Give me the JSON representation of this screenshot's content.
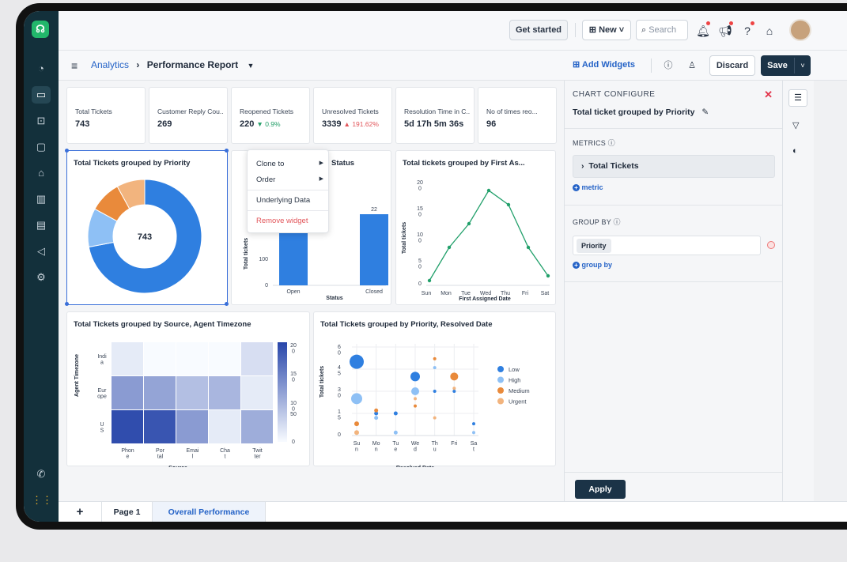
{
  "app": {
    "logo_glyph": "☊"
  },
  "topbar": {
    "get_started": "Get started",
    "new_label": "New",
    "search_placeholder": "Search"
  },
  "breadcrumb": {
    "root": "Analytics",
    "sep": "›",
    "current": "Performance Report"
  },
  "actions": {
    "add_widgets": "Add Widgets",
    "discard": "Discard",
    "save": "Save"
  },
  "kpis": [
    {
      "label": "Total Tickets",
      "value": "743",
      "delta": ""
    },
    {
      "label": "Customer Reply Cou..",
      "value": "269",
      "delta": ""
    },
    {
      "label": "Reopened Tickets",
      "value": "220",
      "delta": "▼ 0.9%",
      "delta_color": "#26a06a"
    },
    {
      "label": "Unresolved Tickets",
      "value": "3339",
      "delta": "▲ 191.62%",
      "delta_color": "#e2565b"
    },
    {
      "label": "Resolution Time in C..",
      "value": "5d 17h 5m 36s",
      "delta": ""
    },
    {
      "label": "No of times reo...",
      "value": "96",
      "delta": ""
    }
  ],
  "widgets": {
    "donut_title": "Total Tickets grouped by Priority",
    "donut_center": "743",
    "status_title": "Status",
    "firstassign_title": "Total tickets grouped by First As...",
    "heatmap_title": "Total Tickets grouped by Source, Agent Timezone",
    "bubble_title": "Total Tickets grouped by Priority, Resolved Date"
  },
  "context_menu": {
    "clone": "Clone to",
    "order": "Order",
    "underlying": "Underlying Data",
    "remove": "Remove widget"
  },
  "chart_data": [
    {
      "type": "pie",
      "title": "Total Tickets grouped by Priority",
      "center_label": "743",
      "slices": [
        {
          "value": 0.72,
          "color": "#2f7fe0"
        },
        {
          "value": 0.11,
          "color": "#8ec0f5"
        },
        {
          "value": 0.09,
          "color": "#e98a3b"
        },
        {
          "value": 0.08,
          "color": "#f2b47e"
        }
      ]
    },
    {
      "type": "bar",
      "title": "Status",
      "categories": [
        "Open",
        "Closed"
      ],
      "values": [
        22,
        22
      ],
      "data_labels": [
        "",
        "22"
      ],
      "ylabel": "Total tickets",
      "xlabel": "Status",
      "yticks": [
        "100",
        "0"
      ]
    },
    {
      "type": "line",
      "title": "Total tickets grouped by First As...",
      "categories": [
        "Sun",
        "Mon",
        "Tue",
        "Wed",
        "Thu",
        "Fri",
        "Sat"
      ],
      "values": [
        1,
        8,
        13,
        20,
        17,
        8,
        2
      ],
      "ylabel": "Total tickets",
      "xlabel": "First Assigned Date",
      "yticks": [
        "20\n0",
        "15\n0",
        "10\n0",
        "5\n0",
        "0"
      ],
      "ylim": [
        0,
        22
      ]
    },
    {
      "type": "heatmap",
      "title": "Total Tickets grouped by Source, Agent Timezone",
      "x": [
        "Phon\ne",
        "Por\ntal",
        "Emai\nl",
        "Cha\nt",
        "Twit\nter"
      ],
      "y": [
        "Indi\na",
        "Eur\nope",
        "U\nS"
      ],
      "values": [
        [
          1,
          0,
          0,
          0,
          2
        ],
        [
          9,
          8,
          5,
          6,
          1
        ],
        [
          19,
          18,
          9,
          1,
          7
        ]
      ],
      "xlabel": "Source",
      "ylabel": "Agent Timezone",
      "scale_ticks": [
        "20\n0",
        "15\n0",
        "10\n0",
        "50",
        "0"
      ]
    },
    {
      "type": "scatter",
      "title": "Total Tickets grouped by Priority, Resolved Date",
      "x": [
        "Su\nn",
        "Mo\nn",
        "Tu\ne",
        "We\nd",
        "Th\nu",
        "Fri",
        "Sa\nt"
      ],
      "ylabel": "Total tickets",
      "xlabel": "Resolved Date",
      "yticks": [
        "6\n0",
        "4\n5",
        "3\n0",
        "1\n5",
        "0"
      ],
      "series": [
        {
          "name": "Low",
          "color": "#2f7fe0",
          "points": [
            [
              0,
              50,
              9
            ],
            [
              1,
              15,
              2.5
            ],
            [
              2,
              15,
              2.5
            ],
            [
              3,
              40,
              6
            ],
            [
              4,
              30,
              2
            ],
            [
              5,
              30,
              2
            ],
            [
              6,
              8,
              2
            ]
          ]
        },
        {
          "name": "High",
          "color": "#8ec0f5",
          "points": [
            [
              0,
              25,
              7
            ],
            [
              1,
              12,
              2.5
            ],
            [
              2,
              2,
              2.5
            ],
            [
              3,
              30,
              5
            ],
            [
              4,
              46,
              2
            ],
            [
              6,
              2,
              2
            ]
          ]
        },
        {
          "name": "Medium",
          "color": "#e98a3b",
          "points": [
            [
              0,
              8,
              3
            ],
            [
              1,
              17,
              2.5
            ],
            [
              3,
              20,
              2
            ],
            [
              4,
              52,
              2
            ],
            [
              5,
              40,
              5
            ]
          ]
        },
        {
          "name": "Urgent",
          "color": "#f2b47e",
          "points": [
            [
              0,
              2,
              3
            ],
            [
              3,
              25,
              2
            ],
            [
              4,
              12,
              2
            ],
            [
              5,
              32,
              2
            ]
          ]
        }
      ]
    }
  ],
  "panel": {
    "header": "CHART CONFIGURE",
    "chart_name": "Total ticket grouped by Priority",
    "metrics_label": "METRICS",
    "metric_item": "Total Tickets",
    "add_metric": "metric",
    "groupby_label": "GROUP BY",
    "groupby_item": "Priority",
    "add_groupby": "group by",
    "apply": "Apply"
  },
  "tabs": {
    "add": "+",
    "page1": "Page 1",
    "overall": "Overall Performance"
  },
  "colors": {
    "accent": "#2563c7",
    "rail": "#13303b",
    "save": "#1b3347"
  }
}
